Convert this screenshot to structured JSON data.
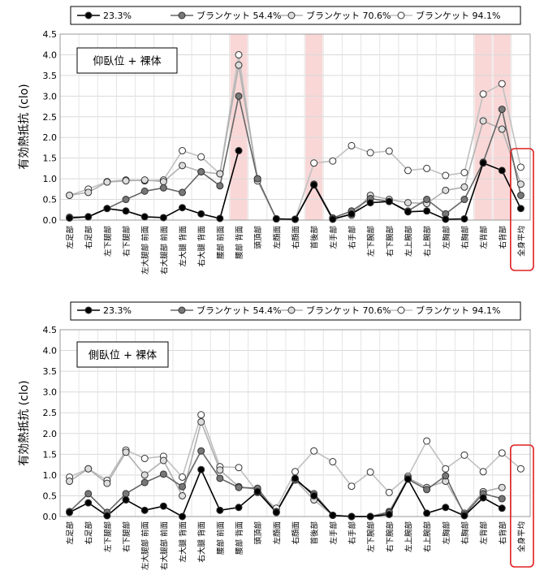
{
  "chart_data": [
    {
      "type": "line",
      "title": "",
      "annotation": "仰臥位 + 裸体",
      "ylabel": "有効熱抵抗 (clo)",
      "xlabel": "",
      "ylim": [
        0,
        4.5
      ],
      "yticks": [
        "0.0",
        "0.5",
        "1.0",
        "1.5",
        "2.0",
        "2.5",
        "3.0",
        "3.5",
        "4.0",
        "4.5"
      ],
      "grid": true,
      "legend_position": "top",
      "categories": [
        "左足部",
        "右足部",
        "左下腿部",
        "右下腿部",
        "左大腿部 前面",
        "右大腿部 前面",
        "左大腿 背面",
        "右大腿 背面",
        "腰部 前面",
        "腰部 背面",
        "頭頂部",
        "左顔面",
        "右顔面",
        "首後部",
        "左手部",
        "右手部",
        "左下腕部",
        "右下腕部",
        "左上腕部",
        "右上腕部",
        "左胸部",
        "右胸部",
        "左背部",
        "右背部",
        "全身平均"
      ],
      "highlighted_categories": [
        "腰部 背面",
        "首後部",
        "左背部",
        "右背部"
      ],
      "boxed_category": "全身平均",
      "series": [
        {
          "name": "23.3%",
          "color": "#000000",
          "marker_fill": "#000000",
          "line_color": "#000000",
          "values": [
            0.05,
            0.08,
            0.28,
            0.22,
            0.08,
            0.06,
            0.3,
            0.15,
            0.04,
            1.68,
            null,
            0.03,
            0.02,
            0.85,
            0.02,
            0.15,
            0.42,
            0.45,
            0.2,
            0.22,
            0.02,
            0.03,
            1.38,
            1.2,
            0.28
          ]
        },
        {
          "name": "ブランケット 54.4%",
          "color": "#777777",
          "marker_fill": "#777777",
          "line_color": "#666666",
          "values": [
            0.07,
            0.08,
            0.28,
            0.5,
            0.7,
            0.78,
            0.67,
            1.17,
            0.83,
            3.0,
            1.0,
            0.03,
            0.02,
            0.87,
            0.05,
            0.22,
            0.52,
            0.45,
            0.22,
            0.5,
            0.15,
            0.5,
            1.4,
            2.68,
            0.6
          ]
        },
        {
          "name": "ブランケット 70.6%",
          "color": "#cccccc",
          "marker_fill": "#dddddd",
          "line_color": "#b0b0b0",
          "values": [
            0.6,
            0.67,
            0.92,
            0.95,
            0.97,
            0.93,
            1.32,
            1.17,
            1.12,
            3.75,
            1.0,
            0.03,
            0.02,
            0.85,
            0.05,
            0.12,
            0.6,
            0.5,
            0.42,
            0.4,
            0.72,
            0.8,
            2.4,
            2.2,
            0.87
          ]
        },
        {
          "name": "ブランケット 94.1%",
          "color": "#ffffff",
          "marker_fill": "#ffffff",
          "line_color": "#c0c0c0",
          "values": [
            0.6,
            0.75,
            0.93,
            0.97,
            0.95,
            0.97,
            1.68,
            1.53,
            1.12,
            4.0,
            0.95,
            0.03,
            0.02,
            1.38,
            1.43,
            1.8,
            1.63,
            1.67,
            1.2,
            1.25,
            1.08,
            1.15,
            3.05,
            3.3,
            1.28
          ]
        }
      ]
    },
    {
      "type": "line",
      "title": "",
      "annotation": "側臥位 + 裸体",
      "ylabel": "有効熱抵抗 (clo)",
      "xlabel": "",
      "ylim": [
        0,
        4.5
      ],
      "yticks": [
        "0.0",
        "0.5",
        "1.0",
        "1.5",
        "2.0",
        "2.5",
        "3.0",
        "3.5",
        "4.0",
        "4.5"
      ],
      "grid": true,
      "legend_position": "top",
      "categories": [
        "左足部",
        "右足部",
        "左下腿部",
        "右下腿部",
        "左大腿部 前面",
        "右大腿部 前面",
        "左大腿 背面",
        "右大腿 背面",
        "腰部 前面",
        "腰部 背面",
        "頭頂部",
        "左顔面",
        "右顔面",
        "首後部",
        "左手部",
        "右手部",
        "左下腕部",
        "右下腕部",
        "左上腕部",
        "右上腕部",
        "左胸部",
        "右胸部",
        "左背部",
        "右背部",
        "全身平均"
      ],
      "highlighted_categories": [],
      "boxed_category": "全身平均",
      "series": [
        {
          "name": "23.3%",
          "color": "#000000",
          "marker_fill": "#000000",
          "line_color": "#000000",
          "values": [
            0.1,
            0.33,
            0.02,
            0.4,
            0.15,
            0.25,
            0.0,
            1.13,
            0.15,
            0.22,
            0.6,
            0.1,
            0.92,
            0.5,
            0.03,
            0.0,
            0.0,
            0.05,
            0.9,
            0.08,
            0.22,
            0.02,
            0.45,
            0.2,
            null
          ]
        },
        {
          "name": "ブランケット 54.4%",
          "color": "#777777",
          "marker_fill": "#777777",
          "line_color": "#666666",
          "values": [
            0.12,
            0.55,
            0.1,
            0.55,
            0.82,
            1.02,
            0.72,
            1.58,
            0.92,
            0.7,
            0.68,
            0.1,
            0.88,
            0.55,
            0.03,
            0.0,
            0.0,
            0.1,
            0.9,
            0.65,
            0.98,
            0.05,
            0.55,
            0.43,
            null
          ]
        },
        {
          "name": "ブランケット 70.6%",
          "color": "#cccccc",
          "marker_fill": "#dddddd",
          "line_color": "#b0b0b0",
          "values": [
            0.85,
            1.15,
            0.8,
            1.55,
            1.0,
            1.35,
            0.5,
            2.28,
            1.12,
            0.72,
            0.65,
            0.12,
            0.88,
            0.4,
            0.03,
            0.0,
            0.0,
            0.12,
            0.93,
            0.7,
            0.85,
            0.08,
            0.6,
            0.7,
            null
          ]
        },
        {
          "name": "ブランケット 94.1%",
          "color": "#ffffff",
          "marker_fill": "#ffffff",
          "line_color": "#c0c0c0",
          "values": [
            0.95,
            1.15,
            0.87,
            1.6,
            1.4,
            1.45,
            0.95,
            2.45,
            1.2,
            1.18,
            0.58,
            0.2,
            1.08,
            1.58,
            1.32,
            0.73,
            1.07,
            0.58,
            0.97,
            1.82,
            1.15,
            1.48,
            1.08,
            1.53,
            1.15
          ]
        }
      ]
    }
  ]
}
